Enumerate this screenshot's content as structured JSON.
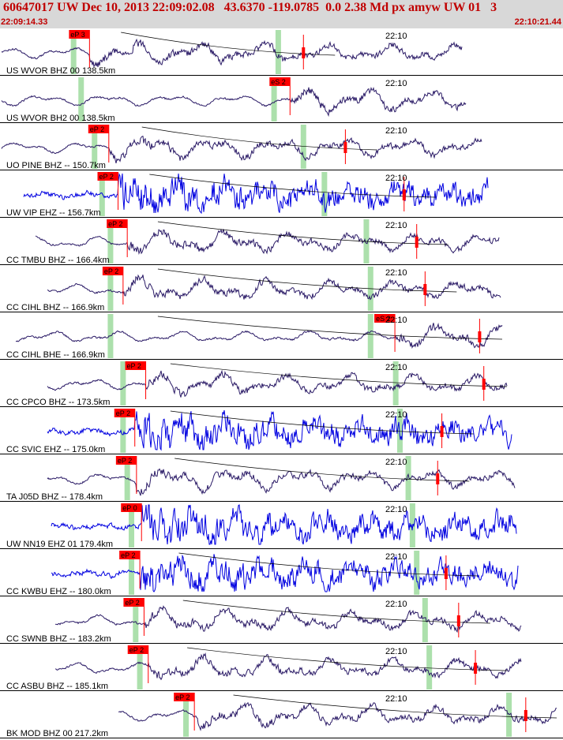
{
  "header": {
    "title": "60647017 UW Dec 10, 2013 22:09:02.08   43.6370 -119.0785  0.0 2.38 Md px amyw UW 01   3",
    "start_time": "22:09:14.33",
    "end_time": "22:10:21.44"
  },
  "colors": {
    "header_bg": "#d8d8d8",
    "header_text": "#c00000",
    "trace_bh": "#2a1a66",
    "trace_eh": "#0000e0",
    "pick_box": "#ff0000",
    "pick_line": "#ff0000",
    "theory_line": "#7fd07f",
    "separator": "#000000"
  },
  "chart_data": {
    "type": "line",
    "title": "60647017 UW Dec 10, 2013 22:09:02.08   43.6370 -119.0785  0.0 2.38 Md px amyw UW 01   3",
    "xlabel": "",
    "ylabel": "",
    "x_unit": "time (UTC)",
    "xlim": [
      "22:09:14.33",
      "22:10:21.44"
    ],
    "minute_mark": "22:10",
    "grid": false,
    "legend": "none",
    "series": [
      {
        "label": "US.WVOR.BHZ.00.138.5km",
        "channel": "BH",
        "pick": "eP 3",
        "pick_time": "22:09:25.0",
        "s_pick_time": "22:09:50.5",
        "theory_p": "22:09:23.1",
        "theory_s": "22:09:47.5"
      },
      {
        "label": "US.WVOR.BH2.00.138.5km",
        "channel": "BH",
        "pick": "eS 2",
        "pick_time": "22:09:48.9",
        "s_pick_time": "",
        "theory_p": "22:09:24.0",
        "theory_s": "22:09:47.0"
      },
      {
        "label": "UO.PINE.BHZ.--.150.7km",
        "channel": "BH",
        "pick": "eP 2",
        "pick_time": "22:09:27.3",
        "s_pick_time": "22:09:55.5",
        "theory_p": "22:09:25.6",
        "theory_s": "22:09:50.5"
      },
      {
        "label": "UW.VIP.EHZ.--.156.7km",
        "channel": "EH",
        "pick": "eP 2",
        "pick_time": "22:09:28.4",
        "s_pick_time": "22:10:02.5",
        "theory_p": "22:09:26.5",
        "theory_s": "22:09:53.0"
      },
      {
        "label": "CC.TMBU.BHZ.--.166.4km",
        "channel": "BH",
        "pick": "eP 2",
        "pick_time": "22:09:29.5",
        "s_pick_time": "22:10:04.0",
        "theory_p": "22:09:27.5",
        "theory_s": "22:09:58.0"
      },
      {
        "label": "CC.CIHL.BHZ.--.166.9km",
        "channel": "BH",
        "pick": "eP 2",
        "pick_time": "22:09:29.0",
        "s_pick_time": "22:10:05.0",
        "theory_p": "22:09:27.5",
        "theory_s": "22:09:58.5"
      },
      {
        "label": "CC.CIHL.BHE.--.166.9km",
        "channel": "BH",
        "pick": "eS 2",
        "pick_time": "22:10:01.4",
        "s_pick_time": "22:10:11.5",
        "theory_p": "22:09:27.5",
        "theory_s": "22:09:58.5"
      },
      {
        "label": "CC.CPCO.BHZ.--.173.5km",
        "channel": "BH",
        "pick": "eP 2",
        "pick_time": "22:09:31.7",
        "s_pick_time": "22:10:12.0",
        "theory_p": "22:09:29.0",
        "theory_s": "22:10:01.5"
      },
      {
        "label": "CC.SVIC.EHZ.--.175.0km",
        "channel": "EH",
        "pick": "eP 2",
        "pick_time": "22:09:30.4",
        "s_pick_time": "22:10:07.0",
        "theory_p": "22:09:29.0",
        "theory_s": "22:10:02.0"
      },
      {
        "label": "TA.J05D.BHZ.--.178.4km",
        "channel": "BH",
        "pick": "eP 2",
        "pick_time": "22:09:30.6",
        "s_pick_time": "22:10:06.5",
        "theory_p": "22:09:29.5",
        "theory_s": "22:10:03.0"
      },
      {
        "label": "UW.NN19.EHZ.01.179.4km",
        "channel": "EH",
        "pick": "eP 0",
        "pick_time": "22:09:31.2",
        "s_pick_time": "",
        "theory_p": "22:09:30.0",
        "theory_s": "22:10:03.5"
      },
      {
        "label": "CC.KWBU.EHZ.--.180.0km",
        "channel": "EH",
        "pick": "eP 2",
        "pick_time": "22:09:31.0",
        "s_pick_time": "22:10:07.5",
        "theory_p": "22:09:30.0",
        "theory_s": "22:10:04.0"
      },
      {
        "label": "CC.SWNB.BHZ.--.183.2km",
        "channel": "BH",
        "pick": "eP 2",
        "pick_time": "22:09:31.5",
        "s_pick_time": "22:10:09.0",
        "theory_p": "22:09:30.5",
        "theory_s": "22:10:05.0"
      },
      {
        "label": "CC.ASBU.BHZ.--.185.1km",
        "channel": "BH",
        "pick": "eP 2",
        "pick_time": "22:09:32.0",
        "s_pick_time": "22:10:11.0",
        "theory_p": "22:09:31.0",
        "theory_s": "22:10:05.5"
      },
      {
        "label": "BK.MOD.BHZ.00.217.2km",
        "channel": "BH",
        "pick": "eP 2",
        "pick_time": "22:09:37.5",
        "s_pick_time": "22:10:17.0",
        "theory_p": "22:09:36.5",
        "theory_s": "22:10:15.0"
      }
    ]
  }
}
